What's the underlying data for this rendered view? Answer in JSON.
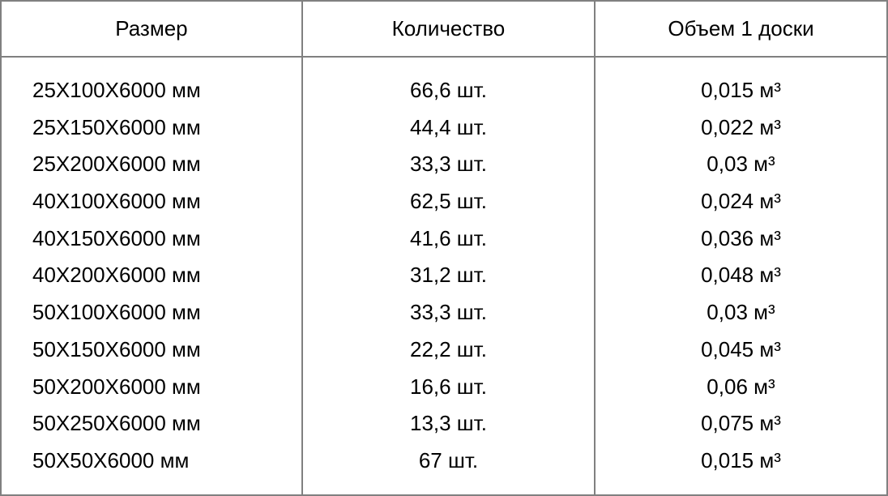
{
  "table": {
    "type": "table",
    "background_color": "#ffffff",
    "border_color": "#808080",
    "text_color": "#000000",
    "header_fontsize": 26,
    "cell_fontsize": 26,
    "font_family": "Arial",
    "columns": [
      {
        "key": "size",
        "label": "Размер",
        "align": "left",
        "width_pct": 34
      },
      {
        "key": "qty",
        "label": "Количество",
        "align": "center",
        "width_pct": 33
      },
      {
        "key": "volume",
        "label": "Объем 1 доски",
        "align": "center",
        "width_pct": 33
      }
    ],
    "rows": [
      {
        "size": "25Х100Х6000 мм",
        "qty": "66,6 шт.",
        "volume": "0,015 м³"
      },
      {
        "size": "25Х150Х6000 мм",
        "qty": "44,4 шт.",
        "volume": "0,022 м³"
      },
      {
        "size": "25Х200Х6000 мм",
        "qty": "33,3 шт.",
        "volume": "0,03 м³"
      },
      {
        "size": "40Х100Х6000 мм",
        "qty": "62,5 шт.",
        "volume": "0,024 м³"
      },
      {
        "size": "40Х150Х6000 мм",
        "qty": "41,6 шт.",
        "volume": "0,036 м³"
      },
      {
        "size": "40Х200Х6000 мм",
        "qty": "31,2 шт.",
        "volume": "0,048 м³"
      },
      {
        "size": "50Х100Х6000 мм",
        "qty": "33,3 шт.",
        "volume": "0,03 м³"
      },
      {
        "size": "50Х150Х6000 мм",
        "qty": "22,2 шт.",
        "volume": "0,045 м³"
      },
      {
        "size": "50Х200Х6000 мм",
        "qty": "16,6 шт.",
        "volume": "0,06 м³"
      },
      {
        "size": "50Х250Х6000 мм",
        "qty": "13,3 шт.",
        "volume": "0,075 м³"
      },
      {
        "size": "50Х50Х6000 мм",
        "qty": "67 шт.",
        "volume": "0,015 м³"
      }
    ]
  }
}
